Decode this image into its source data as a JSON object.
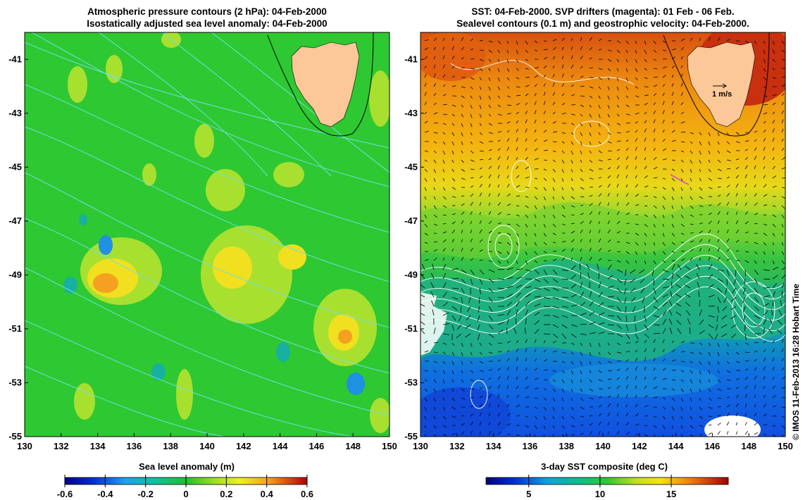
{
  "chart_data": [
    {
      "type": "heatmap",
      "panel": "left",
      "title_line1": "Atmospheric pressure contours (2 hPa): 04-Feb-2000",
      "title_line2": "Isostatically adjusted sea level anomaly: 04-Feb-2000",
      "xlim": [
        130,
        150
      ],
      "ylim": [
        -55,
        -40
      ],
      "x_ticks": [
        "130",
        "132",
        "134",
        "136",
        "138",
        "140",
        "142",
        "144",
        "146",
        "148",
        "150"
      ],
      "y_ticks": [
        "-41",
        "-43",
        "-45",
        "-47",
        "-49",
        "-51",
        "-53",
        "-55"
      ],
      "colorbar": {
        "label": "Sea level anomaly (m)",
        "range": [
          -0.6,
          0.6
        ],
        "ticks": [
          "-0.6",
          "-0.4",
          "-0.2",
          "0",
          "0.2",
          "0.4",
          "0.6"
        ]
      }
    },
    {
      "type": "heatmap",
      "panel": "right",
      "title_line1": "SST: 04-Feb-2000. SVP drifters (magenta): 01 Feb - 06 Feb.",
      "title_line2": "Sealevel contours (0.1 m) and geostrophic velocity: 04-Feb-2000.",
      "xlim": [
        130,
        150
      ],
      "ylim": [
        -55,
        -40
      ],
      "x_ticks": [
        "130",
        "132",
        "134",
        "136",
        "138",
        "140",
        "142",
        "144",
        "146",
        "148",
        "150"
      ],
      "y_ticks": [
        "-41",
        "-43",
        "-45",
        "-47",
        "-49",
        "-51",
        "-53",
        "-55"
      ],
      "velocity_scale_label": "1 m/s",
      "colorbar": {
        "label": "3-day SST composite (deg C)",
        "range": [
          2,
          19
        ],
        "ticks": [
          "5",
          "10",
          "15"
        ]
      }
    }
  ],
  "credit": "© IMOS 11-Feb-2013 16:28 Hobart Time",
  "colors": {
    "land": "#fcc898",
    "pressure_contour": "#70e0e0",
    "sealevel_contour": "#ffffff",
    "drifter": "#e040e0"
  }
}
